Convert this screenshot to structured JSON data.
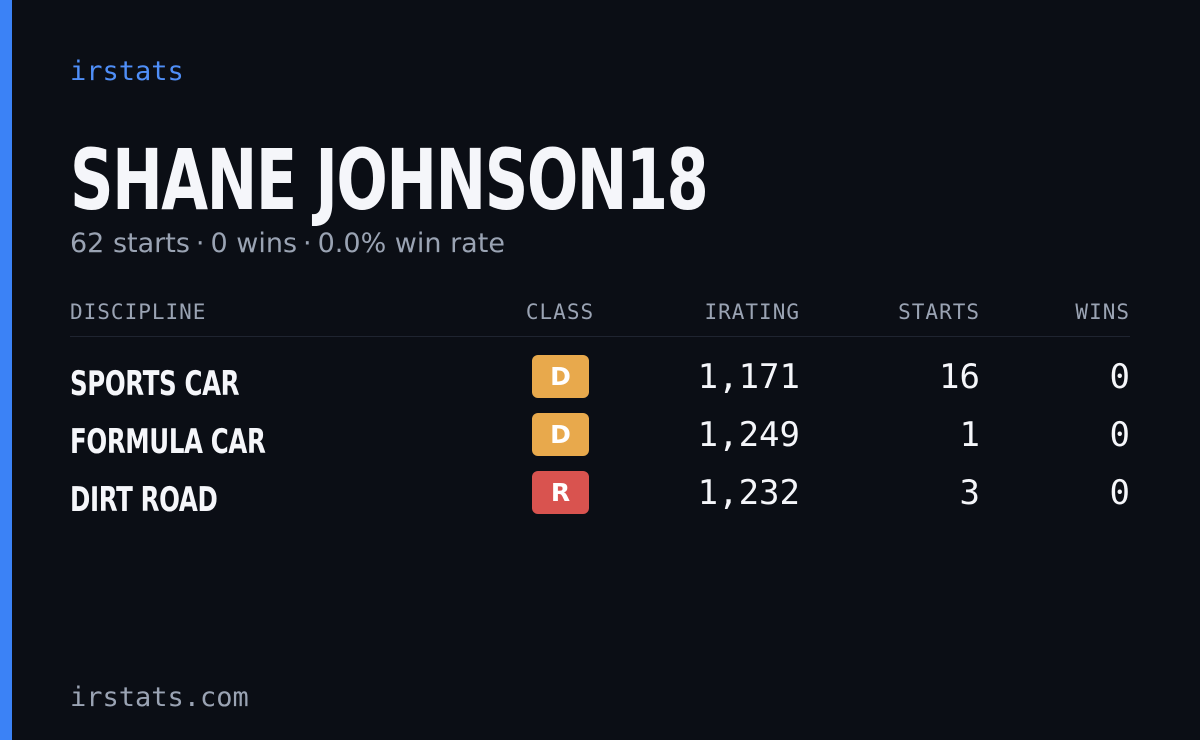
{
  "brand": "irstats",
  "header": {
    "title": "SHANE JOHNSON18",
    "stats": [
      "62 starts",
      "0 wins",
      "0.0% win rate"
    ],
    "separator": "·"
  },
  "table": {
    "columns": [
      "DISCIPLINE",
      "CLASS",
      "IRATING",
      "STARTS",
      "WINS"
    ],
    "rows": [
      {
        "discipline": "SPORTS CAR",
        "class": "D",
        "class_color": "#e8a94c",
        "irating": "1,171",
        "starts": "16",
        "wins": "0"
      },
      {
        "discipline": "FORMULA CAR",
        "class": "D",
        "class_color": "#e8a94c",
        "irating": "1,249",
        "starts": "1",
        "wins": "0"
      },
      {
        "discipline": "DIRT ROAD",
        "class": "R",
        "class_color": "#d9534f",
        "irating": "1,232",
        "starts": "3",
        "wins": "0"
      }
    ]
  },
  "footer": "irstats.com"
}
